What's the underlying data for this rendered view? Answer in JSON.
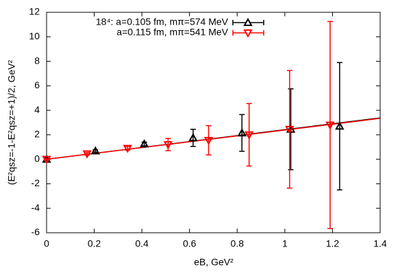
{
  "chart_data": {
    "type": "errorbar",
    "xlabel": "eB, GeV²",
    "ylabel": "(E²qsz=-1-E²qsz=+1)/2, GeV²",
    "xlim": [
      0,
      1.4
    ],
    "xticks": [
      0,
      0.2,
      0.4,
      0.6,
      0.8,
      1,
      1.2,
      1.4
    ],
    "ylim": [
      -6,
      12
    ],
    "yticks": [
      -6,
      -4,
      -2,
      0,
      2,
      4,
      6,
      8,
      10,
      12
    ],
    "legend": "top-right",
    "series": [
      {
        "name": "18⁴: a=0.105 fm, mπ=574 MeV",
        "color": "#000000",
        "marker": "triangle-up",
        "x": [
          0,
          0.205,
          0.41,
          0.615,
          0.82,
          1.025,
          1.23
        ],
        "values": [
          0,
          0.68,
          1.25,
          1.75,
          2.15,
          2.45,
          2.7
        ],
        "errors": [
          0.05,
          0.1,
          0.15,
          0.7,
          1.5,
          3.3,
          5.2
        ]
      },
      {
        "name": "a=0.115 fm, mπ=541 MeV",
        "color": "#ff0000",
        "marker": "triangle-down",
        "x": [
          0,
          0.17,
          0.34,
          0.51,
          0.68,
          0.85,
          1.02,
          1.19
        ],
        "values": [
          0,
          0.45,
          0.9,
          1.2,
          1.55,
          2.0,
          2.45,
          2.8
        ],
        "errors": [
          0.05,
          0.1,
          0.15,
          0.5,
          1.2,
          2.55,
          4.8,
          8.45
        ]
      }
    ],
    "fit_lines": [
      {
        "color": "#000000",
        "x": [
          0,
          1.4
        ],
        "values": [
          0,
          3.38
        ]
      },
      {
        "color": "#ff0000",
        "x": [
          0,
          1.4
        ],
        "values": [
          0,
          3.34
        ]
      }
    ]
  }
}
